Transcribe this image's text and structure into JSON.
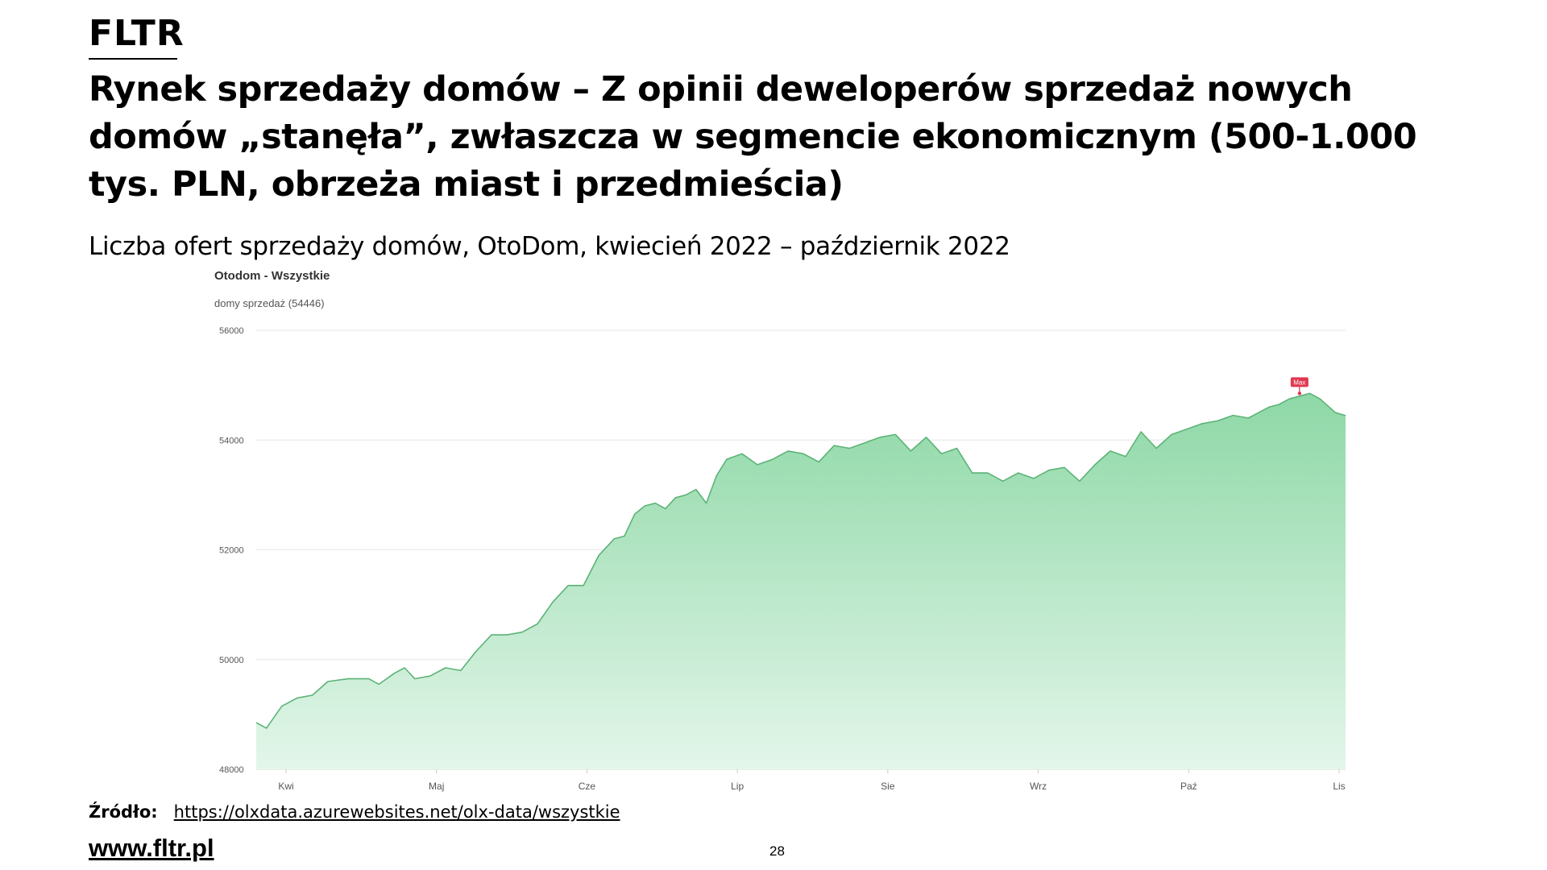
{
  "brand": "FLTR",
  "headline": "Rynek sprzedaży domów – Z opinii deweloperów sprzedaż nowych domów „stanęła”, zwłaszcza w segmencie ekonomicznym (500-1.000 tys. PLN, obrzeża miast i przedmieścia)",
  "subtitle": "Liczba ofert sprzedaży domów, OtoDom, kwiecień 2022 – październik 2022",
  "chart_data": {
    "type": "area",
    "title": "Otodom - Wszystkie",
    "subtitle": "domy sprzedaż (54446)",
    "categories": [
      "Kwi",
      "Maj",
      "Cze",
      "Lip",
      "Sie",
      "Wrz",
      "Paź",
      "Lis"
    ],
    "y_ticks": [
      56000,
      54000,
      52000,
      50000,
      48000
    ],
    "ylim": [
      48000,
      56000
    ],
    "xlim": [
      0,
      213
    ],
    "grid": true,
    "legend": "none",
    "colors": {
      "line": "#5cb377",
      "fill_top": "#8ed8a6",
      "fill_bottom": "#e3f6ea",
      "marker": "#e0394f"
    },
    "max_marker": {
      "label": "Max",
      "x": 204,
      "y": 54850
    },
    "x": [
      0,
      2,
      5,
      8,
      11,
      14,
      18,
      22,
      24,
      27,
      29,
      31,
      34,
      37,
      40,
      43,
      46,
      49,
      52,
      55,
      58,
      61,
      64,
      67,
      70,
      72,
      74,
      76,
      78,
      80,
      82,
      84,
      86,
      88,
      90,
      92,
      95,
      98,
      101,
      104,
      107,
      110,
      113,
      116,
      119,
      122,
      125,
      128,
      131,
      134,
      137,
      140,
      143,
      146,
      149,
      152,
      155,
      158,
      161,
      164,
      167,
      170,
      173,
      176,
      179,
      182,
      185,
      188,
      191,
      194,
      196,
      198,
      200,
      202,
      204,
      206,
      208,
      211,
      213
    ],
    "values": [
      48850,
      48750,
      49150,
      49300,
      49350,
      49600,
      49650,
      49650,
      49550,
      49750,
      49850,
      49650,
      49700,
      49850,
      49800,
      50150,
      50450,
      50450,
      50500,
      50650,
      51050,
      51350,
      51350,
      51900,
      52200,
      52250,
      52650,
      52800,
      52850,
      52750,
      52950,
      53000,
      53100,
      52850,
      53350,
      53650,
      53750,
      53550,
      53650,
      53800,
      53750,
      53600,
      53900,
      53850,
      53950,
      54050,
      54100,
      53800,
      54050,
      53750,
      53850,
      53400,
      53400,
      53250,
      53400,
      53300,
      53450,
      53500,
      53250,
      53550,
      53800,
      53700,
      54150,
      53850,
      54100,
      54200,
      54300,
      54350,
      54450,
      54400,
      54500,
      54600,
      54650,
      54750,
      54800,
      54850,
      54750,
      54500,
      54446
    ]
  },
  "source": {
    "label": "Źródło:",
    "url": "https://olxdata.azurewebsites.net/olx-data/wszystkie"
  },
  "website": "www.fltr.pl",
  "page_number": "28"
}
